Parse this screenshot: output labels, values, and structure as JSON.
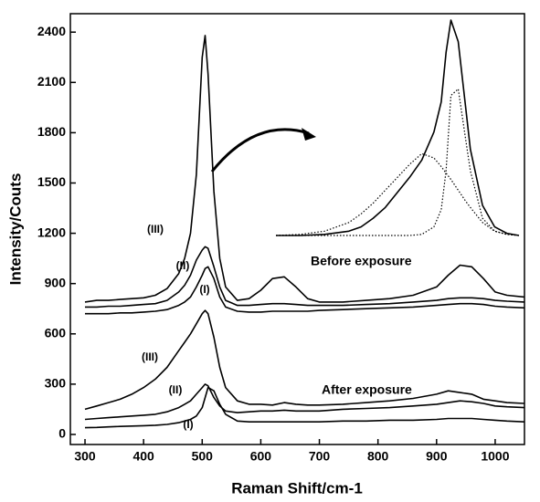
{
  "chart_data": [
    {
      "type": "line",
      "x_label": "Raman Shift/cm-1",
      "y_label": "Intensity/Couts",
      "annotations": [
        "Before exposure",
        "After exposure"
      ],
      "xlim": [
        275,
        1050
      ],
      "ylim": [
        -60,
        2510
      ],
      "xticks": [
        300,
        400,
        500,
        600,
        700,
        800,
        900,
        1000
      ],
      "yticks": [
        0,
        300,
        600,
        900,
        1200,
        1500,
        1800,
        2100,
        2400
      ],
      "x": [
        300,
        320,
        340,
        360,
        380,
        400,
        420,
        440,
        460,
        470,
        480,
        490,
        500,
        505,
        510,
        520,
        530,
        540,
        560,
        580,
        600,
        620,
        640,
        660,
        680,
        700,
        740,
        780,
        820,
        860,
        900,
        920,
        940,
        960,
        980,
        1000,
        1020,
        1050
      ],
      "series": [
        {
          "name": "(III)",
          "color": "#000000",
          "values": [
            790,
            800,
            800,
            805,
            810,
            815,
            830,
            870,
            960,
            1050,
            1200,
            1550,
            2250,
            2380,
            2150,
            1450,
            1050,
            880,
            800,
            810,
            860,
            930,
            940,
            880,
            810,
            790,
            790,
            800,
            810,
            830,
            880,
            950,
            1010,
            1000,
            930,
            850,
            830,
            820
          ]
        },
        {
          "name": "(II)",
          "color": "#000000",
          "values": [
            760,
            760,
            765,
            765,
            770,
            775,
            780,
            800,
            850,
            890,
            950,
            1040,
            1100,
            1120,
            1110,
            1000,
            880,
            800,
            770,
            770,
            775,
            780,
            780,
            775,
            770,
            770,
            770,
            775,
            780,
            790,
            800,
            810,
            815,
            815,
            810,
            800,
            795,
            790
          ]
        },
        {
          "name": "(I)",
          "color": "#000000",
          "values": [
            720,
            720,
            720,
            725,
            725,
            730,
            735,
            745,
            770,
            790,
            820,
            880,
            950,
            990,
            1000,
            930,
            820,
            760,
            735,
            730,
            730,
            735,
            735,
            735,
            735,
            740,
            745,
            750,
            755,
            760,
            770,
            775,
            780,
            780,
            775,
            765,
            760,
            755
          ]
        },
        {
          "name": "(III)",
          "color": "#000000",
          "values": [
            150,
            170,
            190,
            210,
            240,
            280,
            330,
            400,
            500,
            550,
            600,
            660,
            720,
            740,
            720,
            580,
            400,
            280,
            200,
            180,
            180,
            175,
            190,
            180,
            175,
            175,
            180,
            190,
            200,
            215,
            240,
            260,
            250,
            240,
            210,
            200,
            190,
            185
          ]
        },
        {
          "name": "(II)",
          "color": "#000000",
          "values": [
            90,
            95,
            100,
            105,
            110,
            115,
            120,
            135,
            160,
            180,
            200,
            240,
            280,
            300,
            290,
            220,
            170,
            140,
            130,
            135,
            140,
            140,
            145,
            140,
            140,
            140,
            150,
            155,
            160,
            170,
            180,
            190,
            200,
            195,
            185,
            170,
            165,
            160
          ]
        },
        {
          "name": "(I)",
          "color": "#000000",
          "values": [
            40,
            42,
            45,
            48,
            50,
            52,
            55,
            60,
            70,
            80,
            90,
            110,
            160,
            220,
            280,
            260,
            180,
            120,
            80,
            75,
            75,
            75,
            75,
            75,
            75,
            75,
            80,
            80,
            85,
            85,
            90,
            95,
            95,
            95,
            90,
            85,
            80,
            75
          ]
        }
      ]
    },
    {
      "type": "line",
      "xlim": [
        0,
        100
      ],
      "ylim": [
        0,
        100
      ],
      "x": [
        0,
        10,
        20,
        30,
        35,
        40,
        45,
        50,
        55,
        60,
        65,
        68,
        70,
        72,
        75,
        78,
        80,
        85,
        90,
        95,
        100
      ],
      "series": [
        {
          "color": "#000000",
          "style": "solid",
          "values": [
            0,
            0,
            0.5,
            2,
            4,
            8,
            13,
            20,
            27,
            35,
            48,
            62,
            85,
            100,
            90,
            60,
            40,
            14,
            4,
            1,
            0
          ]
        },
        {
          "color": "#000000",
          "style": "dotted",
          "values": [
            0,
            0.5,
            2,
            6,
            10,
            15,
            21,
            27,
            33,
            38,
            36,
            32,
            29,
            26,
            21,
            16,
            13,
            6,
            2,
            0.5,
            0
          ]
        },
        {
          "color": "#000000",
          "style": "dotted",
          "values": [
            0,
            0,
            0,
            0,
            0,
            0,
            0,
            0,
            0,
            0.5,
            4,
            12,
            30,
            65,
            68,
            45,
            30,
            8,
            2,
            0.5,
            0
          ]
        }
      ]
    }
  ]
}
